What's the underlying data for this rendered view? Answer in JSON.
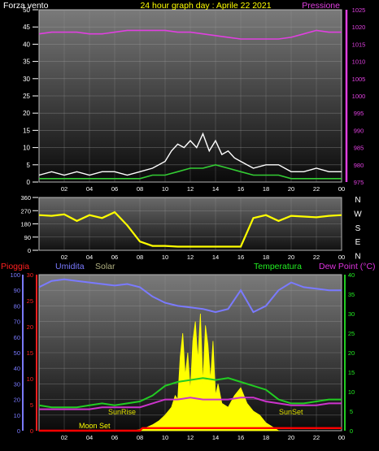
{
  "header": {
    "left": "Forza vento",
    "center": "24 hour graph day : Aprile 22 2021",
    "right": "Pressione"
  },
  "time_ticks": [
    "02",
    "04",
    "06",
    "08",
    "10",
    "12",
    "14",
    "16",
    "18",
    "20",
    "22",
    "00"
  ],
  "direction_labels": [
    "N",
    "W",
    "S",
    "E",
    "N"
  ],
  "bottom_header": {
    "pioggia": "Pioggia",
    "umidita": "Umidita",
    "solar": "Solar",
    "temperatura": "Temperatura",
    "dew_point": "Dew Point (°C)"
  },
  "annotations": {
    "sunrise": "SunRise",
    "sunset": "SunSet",
    "moonset": "Moon Set"
  },
  "colors": {
    "wind_gust": "#ffffff",
    "wind_avg": "#33cc33",
    "pressure": "#e040e0",
    "direction": "#ffff00",
    "humidity": "#7a7aff",
    "solar": "#ffff00",
    "temperature": "#22cc22",
    "dew_point": "#cc33cc",
    "rain": "#ff0000",
    "grid_tick": "#cccccc"
  },
  "chart_data": [
    {
      "type": "line",
      "title": "24 hour graph day : Aprile 22 2021",
      "x_ticks": [
        "02",
        "04",
        "06",
        "08",
        "10",
        "12",
        "14",
        "16",
        "18",
        "20",
        "22",
        "00"
      ],
      "y_left_ticks": [
        "0",
        "5",
        "10",
        "15",
        "20",
        "25",
        "30",
        "35",
        "40",
        "45",
        "50"
      ],
      "y_right_ticks": [
        "975",
        "980",
        "985",
        "990",
        "995",
        "1000",
        "1005",
        "1010",
        "1015",
        "1020",
        "1025"
      ],
      "y_left_range": [
        0,
        50
      ],
      "y_right_range": [
        975,
        1025
      ],
      "series": [
        {
          "name": "Forza vento",
          "axis": "left",
          "style": "gust",
          "x": [
            0,
            1,
            2,
            3,
            4,
            5,
            6,
            7,
            8,
            9,
            10,
            10.5,
            11,
            11.5,
            12,
            12.5,
            13,
            13.5,
            14,
            14.5,
            15,
            15.5,
            16,
            17,
            18,
            19,
            20,
            21,
            22,
            23,
            24
          ],
          "values": [
            2,
            3,
            2,
            3,
            2,
            3,
            3,
            2,
            3,
            4,
            6,
            9,
            11,
            10,
            12,
            10,
            14,
            9,
            12,
            8,
            9,
            7,
            6,
            4,
            5,
            5,
            3,
            3,
            4,
            3,
            3
          ]
        },
        {
          "name": "Forza vento",
          "axis": "left",
          "style": "average",
          "x": [
            0,
            1,
            2,
            3,
            4,
            5,
            6,
            7,
            8,
            9,
            10,
            11,
            12,
            13,
            14,
            15,
            16,
            17,
            18,
            19,
            20,
            21,
            22,
            23,
            24
          ],
          "values": [
            1,
            1,
            1,
            1,
            1,
            1,
            1,
            1,
            1,
            2,
            2,
            3,
            4,
            4,
            5,
            4,
            3,
            2,
            2,
            2,
            1,
            1,
            1,
            1,
            1
          ]
        },
        {
          "name": "Pressione",
          "axis": "right",
          "x": [
            0,
            1,
            2,
            3,
            4,
            5,
            6,
            7,
            8,
            9,
            10,
            11,
            12,
            13,
            14,
            15,
            16,
            17,
            18,
            19,
            20,
            21,
            22,
            23,
            24
          ],
          "values": [
            1018,
            1018.5,
            1018.5,
            1018.5,
            1018,
            1018,
            1018.5,
            1019,
            1019,
            1019,
            1019,
            1018.5,
            1018.5,
            1018,
            1017.5,
            1017,
            1016.5,
            1016.5,
            1016.5,
            1016.5,
            1017,
            1018,
            1019,
            1018.5,
            1018.5
          ]
        }
      ]
    },
    {
      "type": "line",
      "title": "",
      "x_ticks": [
        "02",
        "04",
        "06",
        "08",
        "10",
        "12",
        "14",
        "16",
        "18",
        "20",
        "22",
        "00"
      ],
      "y_left_ticks": [
        "0",
        "90",
        "180",
        "270",
        "360"
      ],
      "y_right_labels": [
        "N",
        "W",
        "S",
        "E",
        "N"
      ],
      "y_range": [
        0,
        360
      ],
      "series": [
        {
          "name": "direction",
          "x": [
            0,
            1,
            2,
            3,
            4,
            5,
            6,
            7,
            8,
            9,
            10,
            11,
            12,
            13,
            14,
            15,
            16,
            17,
            18,
            19,
            20,
            21,
            22,
            23,
            24
          ],
          "values": [
            240,
            235,
            245,
            200,
            240,
            220,
            260,
            170,
            60,
            30,
            30,
            25,
            25,
            25,
            25,
            25,
            25,
            220,
            240,
            200,
            235,
            230,
            225,
            235,
            240
          ]
        }
      ]
    },
    {
      "type": "area",
      "title": "",
      "x_ticks": [
        "02",
        "04",
        "06",
        "08",
        "10",
        "12",
        "14",
        "16",
        "18",
        "20",
        "22",
        "00"
      ],
      "humidity_ticks": [
        "0",
        "10",
        "20",
        "30",
        "40",
        "50",
        "60",
        "70",
        "80",
        "90",
        "100"
      ],
      "rain_ticks": [
        "0",
        "5",
        "10",
        "15",
        "20",
        "25",
        "30"
      ],
      "temperature_ticks": [
        "0",
        "5",
        "10",
        "15",
        "20",
        "25",
        "30",
        "35",
        "40"
      ],
      "series": [
        {
          "name": "Umidita",
          "axis": "humidity",
          "x": [
            0,
            1,
            2,
            3,
            4,
            5,
            6,
            7,
            8,
            9,
            10,
            11,
            12,
            13,
            14,
            15,
            16,
            17,
            18,
            19,
            20,
            21,
            22,
            23,
            24
          ],
          "values": [
            92,
            96,
            97,
            96,
            95,
            94,
            93,
            94,
            92,
            86,
            82,
            80,
            79,
            78,
            76,
            78,
            90,
            76,
            80,
            90,
            95,
            92,
            91,
            90,
            90
          ]
        },
        {
          "name": "Temperatura",
          "axis": "temperature",
          "x": [
            0,
            1,
            2,
            3,
            4,
            5,
            6,
            7,
            8,
            9,
            10,
            11,
            12,
            13,
            14,
            15,
            16,
            17,
            18,
            19,
            20,
            21,
            22,
            23,
            24
          ],
          "values": [
            6.5,
            6,
            6,
            6,
            6.5,
            7,
            6.5,
            7,
            7.5,
            9,
            11.5,
            12.5,
            13,
            13.5,
            13,
            13.5,
            12.5,
            11.5,
            10.5,
            8,
            7,
            7,
            7.5,
            8,
            8
          ]
        },
        {
          "name": "Dew Point",
          "axis": "temperature",
          "x": [
            0,
            1,
            2,
            3,
            4,
            5,
            6,
            7,
            8,
            9,
            10,
            11,
            12,
            13,
            14,
            15,
            16,
            17,
            18,
            19,
            20,
            21,
            22,
            23,
            24
          ],
          "values": [
            5.5,
            5.5,
            5.5,
            5.5,
            5.5,
            6,
            6,
            6,
            6,
            7,
            8,
            8,
            8.5,
            8,
            8,
            8,
            8.5,
            8.5,
            7.5,
            7,
            6.5,
            6.5,
            6.5,
            7,
            7
          ]
        },
        {
          "name": "Solar",
          "axis": "temperature",
          "style": "filled",
          "x": [
            7.5,
            8,
            8.5,
            9,
            9.5,
            10,
            10.5,
            10.8,
            11,
            11.2,
            11.4,
            11.6,
            11.8,
            12,
            12.2,
            12.4,
            12.6,
            12.8,
            13,
            13.2,
            13.4,
            13.6,
            13.8,
            14,
            14.2,
            14.5,
            15,
            15.5,
            16,
            16.5,
            17,
            17.5,
            18,
            18.5,
            19
          ],
          "values": [
            0,
            0.3,
            0.8,
            1.5,
            2.5,
            4,
            6,
            9,
            8,
            19,
            25,
            14,
            20,
            10,
            23,
            28,
            18,
            30,
            12,
            27,
            22,
            13,
            23,
            9,
            12,
            7,
            6,
            9,
            11,
            7,
            5,
            4,
            2,
            1,
            0
          ]
        },
        {
          "name": "Pioggia",
          "axis": "rain",
          "x": [
            0,
            8,
            8.2,
            24
          ],
          "values": [
            0,
            0,
            0.5,
            0.5
          ]
        }
      ]
    }
  ]
}
